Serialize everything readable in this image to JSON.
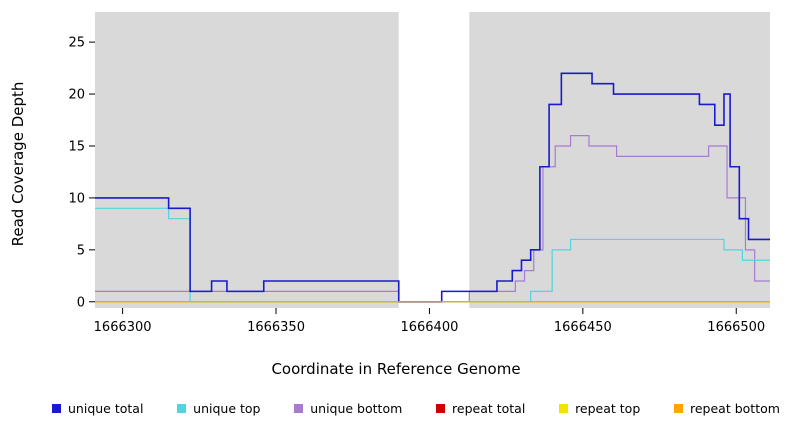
{
  "chart_data": {
    "type": "line",
    "subtype": "step-coverage",
    "title": "",
    "xlabel": "Coordinate in Reference Genome",
    "ylabel": "Read Coverage Depth",
    "xlim": [
      1666291,
      1666511
    ],
    "ylim": [
      -0.6,
      27.9
    ],
    "x_ticks": [
      1666300,
      1666350,
      1666400,
      1666450,
      1666500
    ],
    "y_ticks": [
      0,
      5,
      10,
      15,
      20,
      25
    ],
    "grid": false,
    "legend_position": "bottom",
    "background_color": "#d9d9d9",
    "gap_region": {
      "from": 1666390,
      "to": 1666413,
      "color": "#ffffff"
    },
    "draw_order": [
      3,
      4,
      2,
      1,
      0,
      5
    ],
    "series": [
      {
        "name": "unique total",
        "color": "#1a1acd",
        "width": 1.6,
        "steps": [
          [
            1666291,
            10
          ],
          [
            1666315,
            9
          ],
          [
            1666322,
            1
          ],
          [
            1666329,
            2
          ],
          [
            1666334,
            1
          ],
          [
            1666346,
            2
          ],
          [
            1666390,
            0
          ],
          [
            1666404,
            1
          ],
          [
            1666422,
            2
          ],
          [
            1666427,
            3
          ],
          [
            1666430,
            4
          ],
          [
            1666433,
            5
          ],
          [
            1666436,
            13
          ],
          [
            1666439,
            19
          ],
          [
            1666443,
            22
          ],
          [
            1666453,
            21
          ],
          [
            1666460,
            20
          ],
          [
            1666488,
            19
          ],
          [
            1666493,
            17
          ],
          [
            1666496,
            20
          ],
          [
            1666498,
            13
          ],
          [
            1666501,
            8
          ],
          [
            1666504,
            6
          ],
          [
            1666511,
            6
          ]
        ]
      },
      {
        "name": "unique top",
        "color": "#4fd5e0",
        "width": 1.2,
        "steps": [
          [
            1666291,
            9
          ],
          [
            1666315,
            8
          ],
          [
            1666322,
            0
          ],
          [
            1666433,
            1
          ],
          [
            1666440,
            5
          ],
          [
            1666446,
            6
          ],
          [
            1666496,
            5
          ],
          [
            1666502,
            4
          ],
          [
            1666511,
            4
          ]
        ]
      },
      {
        "name": "unique bottom",
        "color": "#a77bd0",
        "width": 1.2,
        "steps": [
          [
            1666291,
            1
          ],
          [
            1666390,
            0
          ],
          [
            1666413,
            1
          ],
          [
            1666428,
            2
          ],
          [
            1666431,
            3
          ],
          [
            1666434,
            5
          ],
          [
            1666437,
            13
          ],
          [
            1666441,
            15
          ],
          [
            1666446,
            16
          ],
          [
            1666452,
            15
          ],
          [
            1666461,
            14
          ],
          [
            1666491,
            15
          ],
          [
            1666497,
            10
          ],
          [
            1666503,
            5
          ],
          [
            1666506,
            2
          ],
          [
            1666511,
            2
          ]
        ]
      },
      {
        "name": "repeat total",
        "color": "#cc0000",
        "width": 1.2,
        "steps": [
          [
            1666291,
            0
          ],
          [
            1666511,
            0
          ]
        ]
      },
      {
        "name": "repeat top",
        "color": "#f2e400",
        "width": 1.2,
        "steps": [
          [
            1666291,
            0
          ],
          [
            1666511,
            0
          ]
        ]
      },
      {
        "name": "repeat bottom",
        "color": "#ffa500",
        "width": 1.2,
        "steps": [
          [
            1666291,
            0
          ],
          [
            1666511,
            0
          ]
        ]
      }
    ]
  }
}
